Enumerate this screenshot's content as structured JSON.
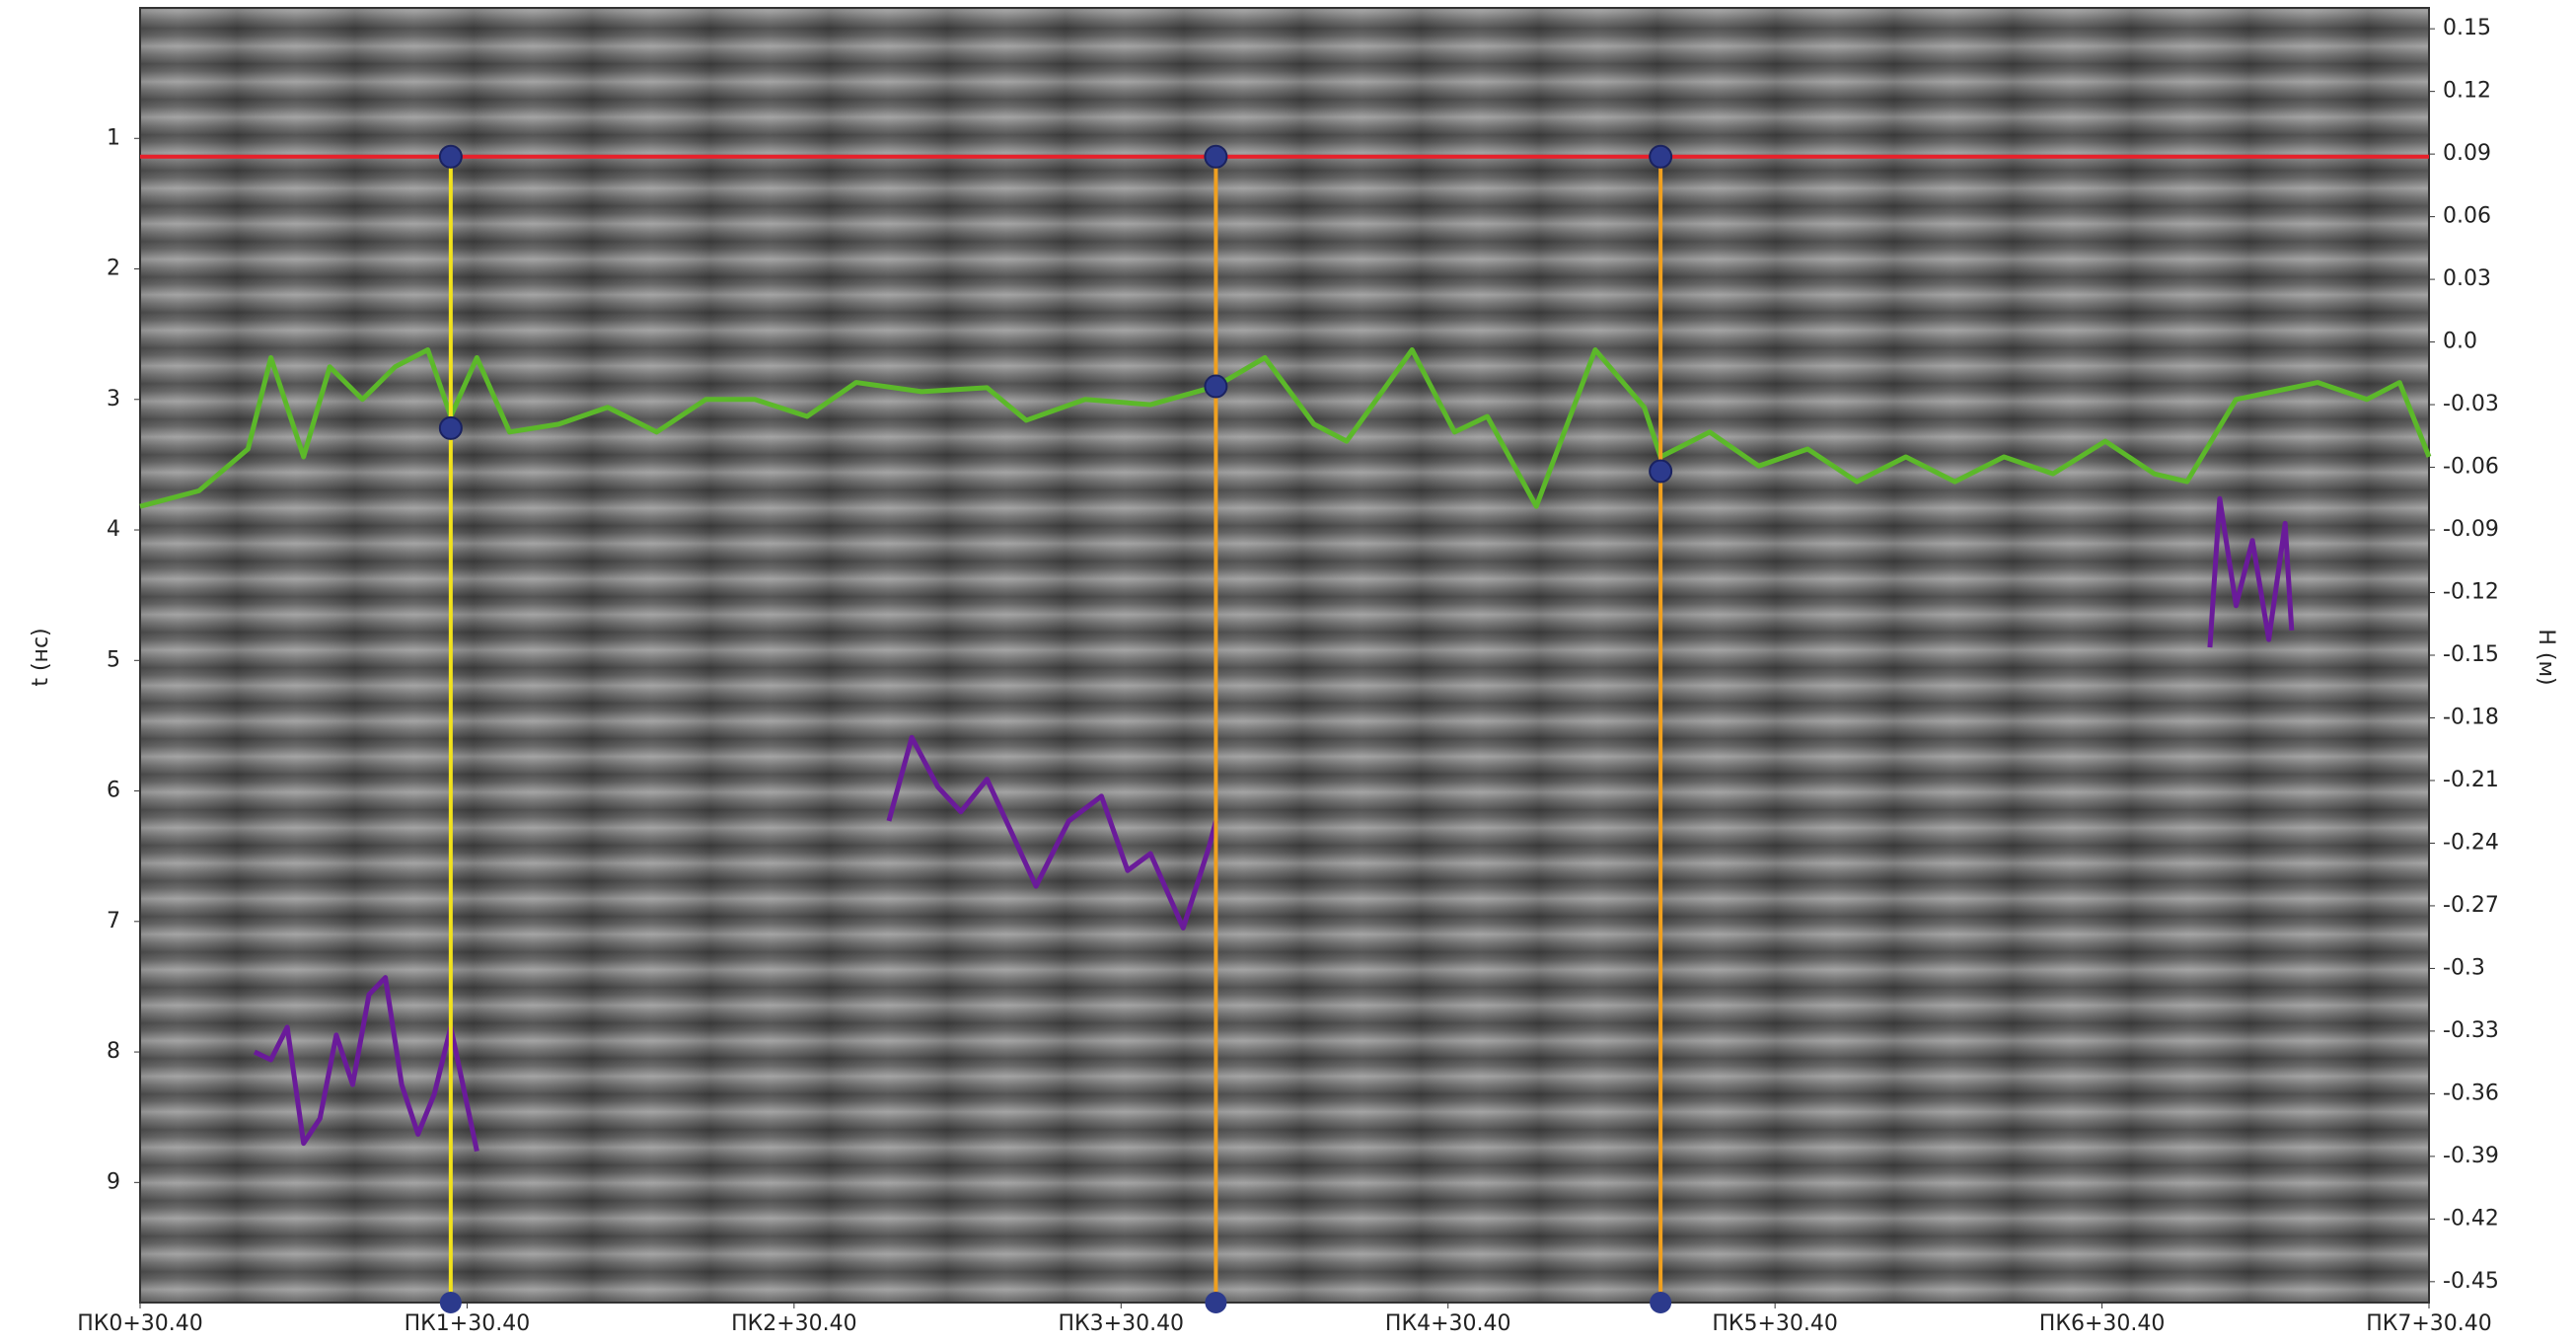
{
  "chart_data": {
    "type": "line",
    "ylabel": "t (нс)",
    "y2label": "H (м)",
    "xlim": [
      0,
      7
    ],
    "xticks": [
      {
        "value": 0,
        "label": "ПК0+30.40"
      },
      {
        "value": 1,
        "label": "ПК1+30.40"
      },
      {
        "value": 2,
        "label": "ПК2+30.40"
      },
      {
        "value": 3,
        "label": "ПК3+30.40"
      },
      {
        "value": 4,
        "label": "ПК4+30.40"
      },
      {
        "value": 5,
        "label": "ПК5+30.40"
      },
      {
        "value": 6,
        "label": "ПК6+30.40"
      },
      {
        "value": 7,
        "label": "ПК7+30.40"
      }
    ],
    "ylim": [
      0,
      9.92
    ],
    "y_inverted": true,
    "yticks": [
      1,
      2,
      3,
      4,
      5,
      6,
      7,
      8,
      9
    ],
    "y2lim": [
      0.16,
      -0.46
    ],
    "y2ticks": [
      0.15,
      0.12,
      0.09,
      0.06,
      0.03,
      {
        "value": 0,
        "label": "0.0"
      },
      -0.03,
      -0.06,
      -0.09,
      -0.12,
      -0.15,
      -0.18,
      -0.21,
      -0.24,
      -0.27,
      -0.3,
      -0.33,
      -0.36,
      -0.39,
      -0.42,
      -0.45
    ],
    "series": [
      {
        "color": "#5cb82a",
        "x": [
          0,
          0.18,
          0.33,
          0.4,
          0.5,
          0.58,
          0.68,
          0.78,
          0.88,
          0.95,
          1.03,
          1.13,
          1.28,
          1.43,
          1.58,
          1.73,
          1.88,
          2.04,
          2.19,
          2.39,
          2.59,
          2.71,
          2.89,
          3.09,
          3.29,
          3.44,
          3.59,
          3.69,
          3.89,
          4.02,
          4.12,
          4.27,
          4.45,
          4.6,
          4.65,
          4.8,
          4.95,
          5.1,
          5.25,
          5.4,
          5.55,
          5.7,
          5.85,
          6.01,
          6.16,
          6.26,
          6.41,
          6.66,
          6.81,
          6.91,
          7.0
        ],
        "values": [
          3.82,
          3.7,
          3.38,
          2.68,
          3.44,
          2.75,
          3.0,
          2.75,
          2.62,
          3.13,
          2.68,
          3.25,
          3.19,
          3.06,
          3.25,
          3.0,
          3.0,
          3.13,
          2.87,
          2.94,
          2.91,
          3.16,
          3.0,
          3.04,
          2.9,
          2.68,
          3.19,
          3.32,
          2.62,
          3.25,
          3.13,
          3.82,
          2.62,
          3.06,
          3.44,
          3.25,
          3.51,
          3.38,
          3.63,
          3.44,
          3.63,
          3.44,
          3.57,
          3.32,
          3.57,
          3.63,
          3.0,
          2.87,
          3.0,
          2.87,
          3.44
        ]
      },
      {
        "color": "#6a1b9a",
        "x": [
          0.35,
          0.4,
          0.45,
          0.5,
          0.55,
          0.6,
          0.65,
          0.7,
          0.75,
          0.8,
          0.85,
          0.9,
          0.95,
          1.03
        ],
        "values": [
          8.0,
          8.06,
          7.81,
          8.7,
          8.51,
          7.87,
          8.25,
          7.56,
          7.43,
          8.25,
          8.63,
          8.32,
          7.81,
          8.76
        ]
      },
      {
        "color": "#6a1b9a",
        "x": [
          2.29,
          2.36,
          2.44,
          2.51,
          2.59,
          2.66,
          2.74,
          2.84,
          2.94,
          3.02,
          3.09,
          3.19,
          3.27,
          3.29
        ],
        "values": [
          6.23,
          5.59,
          5.97,
          6.16,
          5.91,
          6.29,
          6.73,
          6.23,
          6.04,
          6.61,
          6.48,
          7.05,
          6.42,
          6.23
        ]
      },
      {
        "color": "#6a1b9a",
        "x": [
          6.33,
          6.36,
          6.41,
          6.46,
          6.51,
          6.56,
          6.58
        ],
        "values": [
          4.9,
          3.76,
          4.58,
          4.08,
          4.84,
          3.95,
          4.77
        ]
      }
    ],
    "reference_line": {
      "value": 1.14,
      "color": "#e8202a"
    },
    "markers": [
      {
        "x": 0.95,
        "color": "#f2e21c",
        "points": [
          1.14,
          3.22
        ]
      },
      {
        "x": 3.29,
        "color": "#f0a020",
        "points": [
          1.14,
          2.9
        ]
      },
      {
        "x": 4.65,
        "color": "#f0a020",
        "points": [
          1.14,
          3.55
        ]
      }
    ]
  }
}
